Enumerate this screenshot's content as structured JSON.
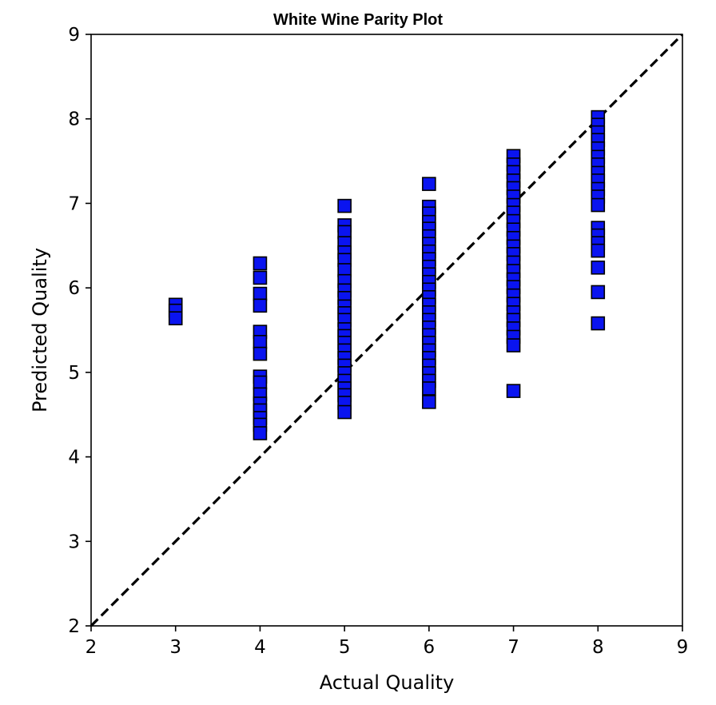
{
  "chart_data": {
    "type": "scatter",
    "title": "White Wine Parity Plot",
    "xlabel": "Actual Quality",
    "ylabel": "Predicted Quality",
    "xlim": [
      2,
      9
    ],
    "ylim": [
      2,
      9
    ],
    "xticks": [
      "2",
      "3",
      "4",
      "5",
      "6",
      "7",
      "8",
      "9"
    ],
    "yticks": [
      "2",
      "3",
      "4",
      "5",
      "6",
      "7",
      "8",
      "9"
    ],
    "grid": false,
    "legend": false,
    "marker": "square",
    "marker_color": "#0a14f0",
    "marker_edge_color": "#000000",
    "reference_line": {
      "style": "dashed",
      "color": "#000000",
      "from": [
        2,
        2
      ],
      "to": [
        9,
        9
      ]
    },
    "points": [
      {
        "x": 3,
        "y": 5.8
      },
      {
        "x": 3,
        "y": 5.73
      },
      {
        "x": 3,
        "y": 5.64
      },
      {
        "x": 4,
        "y": 6.29
      },
      {
        "x": 4,
        "y": 6.12
      },
      {
        "x": 4,
        "y": 5.93
      },
      {
        "x": 4,
        "y": 5.79
      },
      {
        "x": 4,
        "y": 5.48
      },
      {
        "x": 4,
        "y": 5.36
      },
      {
        "x": 4,
        "y": 5.22
      },
      {
        "x": 4,
        "y": 4.95
      },
      {
        "x": 4,
        "y": 4.88
      },
      {
        "x": 4,
        "y": 4.74
      },
      {
        "x": 4,
        "y": 4.63
      },
      {
        "x": 4,
        "y": 4.55
      },
      {
        "x": 4,
        "y": 4.46
      },
      {
        "x": 4,
        "y": 4.38
      },
      {
        "x": 4,
        "y": 4.28
      },
      {
        "x": 5,
        "y": 6.97
      },
      {
        "x": 5,
        "y": 6.74
      },
      {
        "x": 5,
        "y": 6.66
      },
      {
        "x": 5,
        "y": 6.53
      },
      {
        "x": 5,
        "y": 6.42
      },
      {
        "x": 5,
        "y": 6.33
      },
      {
        "x": 5,
        "y": 6.21
      },
      {
        "x": 5,
        "y": 6.08
      },
      {
        "x": 5,
        "y": 5.97
      },
      {
        "x": 5,
        "y": 5.88
      },
      {
        "x": 5,
        "y": 5.78
      },
      {
        "x": 5,
        "y": 5.7
      },
      {
        "x": 5,
        "y": 5.62
      },
      {
        "x": 5,
        "y": 5.51
      },
      {
        "x": 5,
        "y": 5.43
      },
      {
        "x": 5,
        "y": 5.35
      },
      {
        "x": 5,
        "y": 5.26
      },
      {
        "x": 5,
        "y": 5.17
      },
      {
        "x": 5,
        "y": 5.08
      },
      {
        "x": 5,
        "y": 4.99
      },
      {
        "x": 5,
        "y": 4.9
      },
      {
        "x": 5,
        "y": 4.81
      },
      {
        "x": 5,
        "y": 4.73
      },
      {
        "x": 5,
        "y": 4.64
      },
      {
        "x": 5,
        "y": 4.53
      },
      {
        "x": 6,
        "y": 7.23
      },
      {
        "x": 6,
        "y": 6.96
      },
      {
        "x": 6,
        "y": 6.88
      },
      {
        "x": 6,
        "y": 6.78
      },
      {
        "x": 6,
        "y": 6.7
      },
      {
        "x": 6,
        "y": 6.61
      },
      {
        "x": 6,
        "y": 6.52
      },
      {
        "x": 6,
        "y": 6.43
      },
      {
        "x": 6,
        "y": 6.34
      },
      {
        "x": 6,
        "y": 6.25
      },
      {
        "x": 6,
        "y": 6.16
      },
      {
        "x": 6,
        "y": 6.07
      },
      {
        "x": 6,
        "y": 5.98
      },
      {
        "x": 6,
        "y": 5.89
      },
      {
        "x": 6,
        "y": 5.8
      },
      {
        "x": 6,
        "y": 5.71
      },
      {
        "x": 6,
        "y": 5.62
      },
      {
        "x": 6,
        "y": 5.53
      },
      {
        "x": 6,
        "y": 5.44
      },
      {
        "x": 6,
        "y": 5.35
      },
      {
        "x": 6,
        "y": 5.26
      },
      {
        "x": 6,
        "y": 5.17
      },
      {
        "x": 6,
        "y": 5.08
      },
      {
        "x": 6,
        "y": 4.99
      },
      {
        "x": 6,
        "y": 4.9
      },
      {
        "x": 6,
        "y": 4.81
      },
      {
        "x": 6,
        "y": 4.65
      },
      {
        "x": 7,
        "y": 7.56
      },
      {
        "x": 7,
        "y": 7.46
      },
      {
        "x": 7,
        "y": 7.37
      },
      {
        "x": 7,
        "y": 7.27
      },
      {
        "x": 7,
        "y": 7.18
      },
      {
        "x": 7,
        "y": 7.08
      },
      {
        "x": 7,
        "y": 6.98
      },
      {
        "x": 7,
        "y": 6.89
      },
      {
        "x": 7,
        "y": 6.79
      },
      {
        "x": 7,
        "y": 6.69
      },
      {
        "x": 7,
        "y": 6.59
      },
      {
        "x": 7,
        "y": 6.49
      },
      {
        "x": 7,
        "y": 6.4
      },
      {
        "x": 7,
        "y": 6.3
      },
      {
        "x": 7,
        "y": 6.2
      },
      {
        "x": 7,
        "y": 6.1
      },
      {
        "x": 7,
        "y": 6.01
      },
      {
        "x": 7,
        "y": 5.91
      },
      {
        "x": 7,
        "y": 5.81
      },
      {
        "x": 7,
        "y": 5.71
      },
      {
        "x": 7,
        "y": 5.62
      },
      {
        "x": 7,
        "y": 5.52
      },
      {
        "x": 7,
        "y": 5.42
      },
      {
        "x": 7,
        "y": 5.32
      },
      {
        "x": 7,
        "y": 4.78
      },
      {
        "x": 8,
        "y": 8.02
      },
      {
        "x": 8,
        "y": 7.93
      },
      {
        "x": 8,
        "y": 7.84
      },
      {
        "x": 8,
        "y": 7.75
      },
      {
        "x": 8,
        "y": 7.65
      },
      {
        "x": 8,
        "y": 7.55
      },
      {
        "x": 8,
        "y": 7.46
      },
      {
        "x": 8,
        "y": 7.36
      },
      {
        "x": 8,
        "y": 7.27
      },
      {
        "x": 8,
        "y": 7.17
      },
      {
        "x": 8,
        "y": 7.08
      },
      {
        "x": 8,
        "y": 6.98
      },
      {
        "x": 8,
        "y": 6.71
      },
      {
        "x": 8,
        "y": 6.62
      },
      {
        "x": 8,
        "y": 6.53
      },
      {
        "x": 8,
        "y": 6.44
      },
      {
        "x": 8,
        "y": 6.24
      },
      {
        "x": 8,
        "y": 5.95
      },
      {
        "x": 8,
        "y": 5.58
      }
    ]
  }
}
